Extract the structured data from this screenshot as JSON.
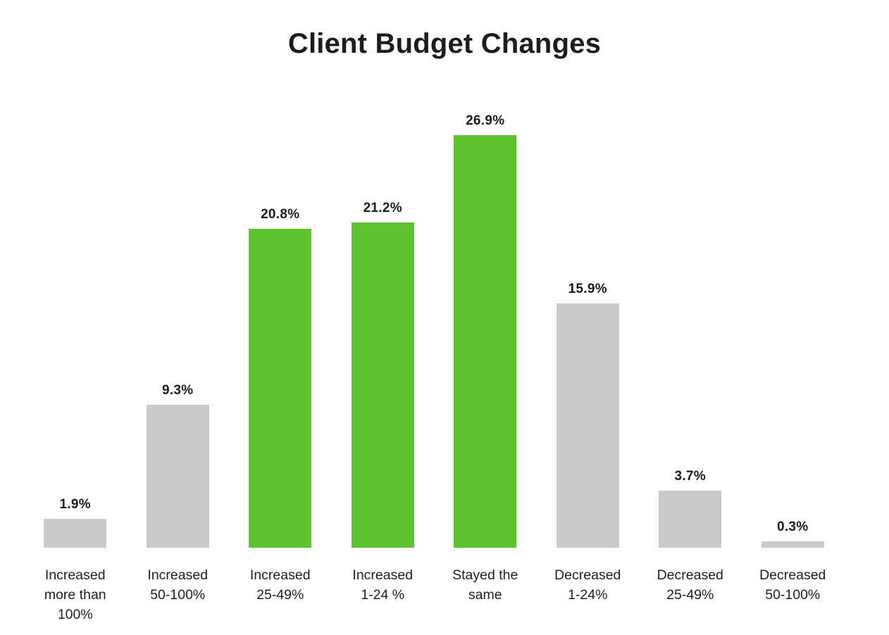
{
  "chart_data": {
    "type": "bar",
    "title": "Client Budget Changes",
    "categories": [
      "Increased more than 100%",
      "Increased 50-100%",
      "Increased 25-49%",
      "Increased 1-24 %",
      "Stayed the same",
      "Decreased 1-24%",
      "Decreased 25-49%",
      "Decreased 50-100%"
    ],
    "category_lines": [
      [
        "Increased",
        "more than",
        "100%"
      ],
      [
        "Increased",
        "50-100%"
      ],
      [
        "Increased",
        "25-49%"
      ],
      [
        "Increased",
        "1-24 %"
      ],
      [
        "Stayed the",
        "same"
      ],
      [
        "Decreased",
        "1-24%"
      ],
      [
        "Decreased",
        "25-49%"
      ],
      [
        "Decreased",
        "50-100%"
      ]
    ],
    "values": [
      1.9,
      9.3,
      20.8,
      21.2,
      26.9,
      15.9,
      3.7,
      0.3
    ],
    "value_labels": [
      "1.9%",
      "9.3%",
      "20.8%",
      "21.2%",
      "26.9%",
      "15.9%",
      "3.7%",
      "0.3%"
    ],
    "highlighted": [
      false,
      false,
      true,
      true,
      true,
      false,
      false,
      false
    ],
    "colors": {
      "highlight_bar": "#5cc32e",
      "default_bar": "#c9c9c9",
      "label_text": "#1b1b1b",
      "title_text": "#1d1d1f"
    },
    "xlabel": "",
    "ylabel": "",
    "ylim": [
      0,
      27.5
    ],
    "grid": "off",
    "axes": "hidden",
    "legend": "none"
  }
}
